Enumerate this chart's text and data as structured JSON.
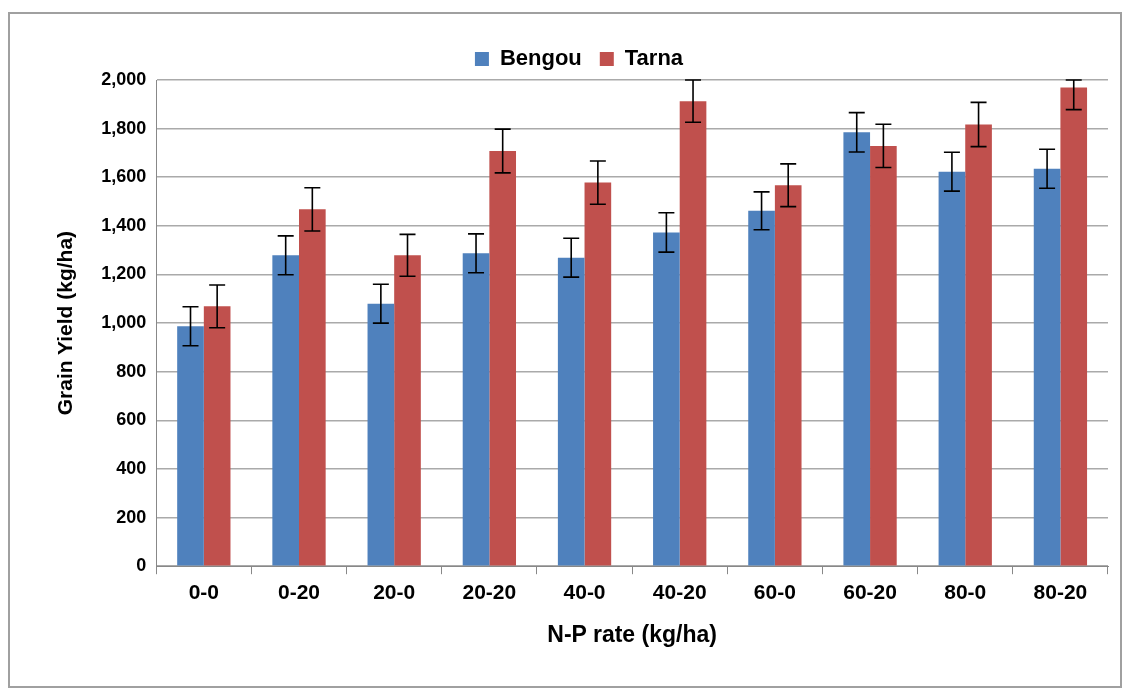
{
  "chart_data": {
    "type": "bar",
    "xlabel": "N-P rate (kg/ha)",
    "ylabel": "Grain Yield (kg/ha)",
    "categories": [
      "0-0",
      "0-20",
      "20-0",
      "20-20",
      "40-0",
      "40-20",
      "60-0",
      "60-20",
      "80-0",
      "80-20"
    ],
    "series": [
      {
        "name": "Bengou",
        "color": "#4f81bd",
        "values": [
          987,
          1279,
          1080,
          1287,
          1269,
          1373,
          1462,
          1785,
          1623,
          1635
        ],
        "errors": [
          80,
          80,
          80,
          80,
          80,
          81,
          78,
          81,
          80,
          80
        ]
      },
      {
        "name": "Tarna",
        "color": "#c0504d",
        "values": [
          1069,
          1468,
          1279,
          1708,
          1578,
          1913,
          1567,
          1729,
          1817,
          1969
        ],
        "errors": [
          88,
          89,
          86,
          90,
          89,
          87,
          88,
          89,
          91,
          [
            1878,
            2000
          ]
        ]
      }
    ],
    "ylim": [
      0,
      2000
    ],
    "yticks": [
      {
        "value": 0,
        "label": "0"
      },
      {
        "value": 200,
        "label": "200"
      },
      {
        "value": 400,
        "label": "400"
      },
      {
        "value": 600,
        "label": "600"
      },
      {
        "value": 800,
        "label": "800"
      },
      {
        "value": 1000,
        "label": "1,000"
      },
      {
        "value": 1200,
        "label": "1,200"
      },
      {
        "value": 1400,
        "label": "1,400"
      },
      {
        "value": 1600,
        "label": "1,600"
      },
      {
        "value": 1800,
        "label": "1,800"
      },
      {
        "value": 2000,
        "label": "2,000"
      }
    ],
    "grid": "y",
    "legend": "top"
  }
}
